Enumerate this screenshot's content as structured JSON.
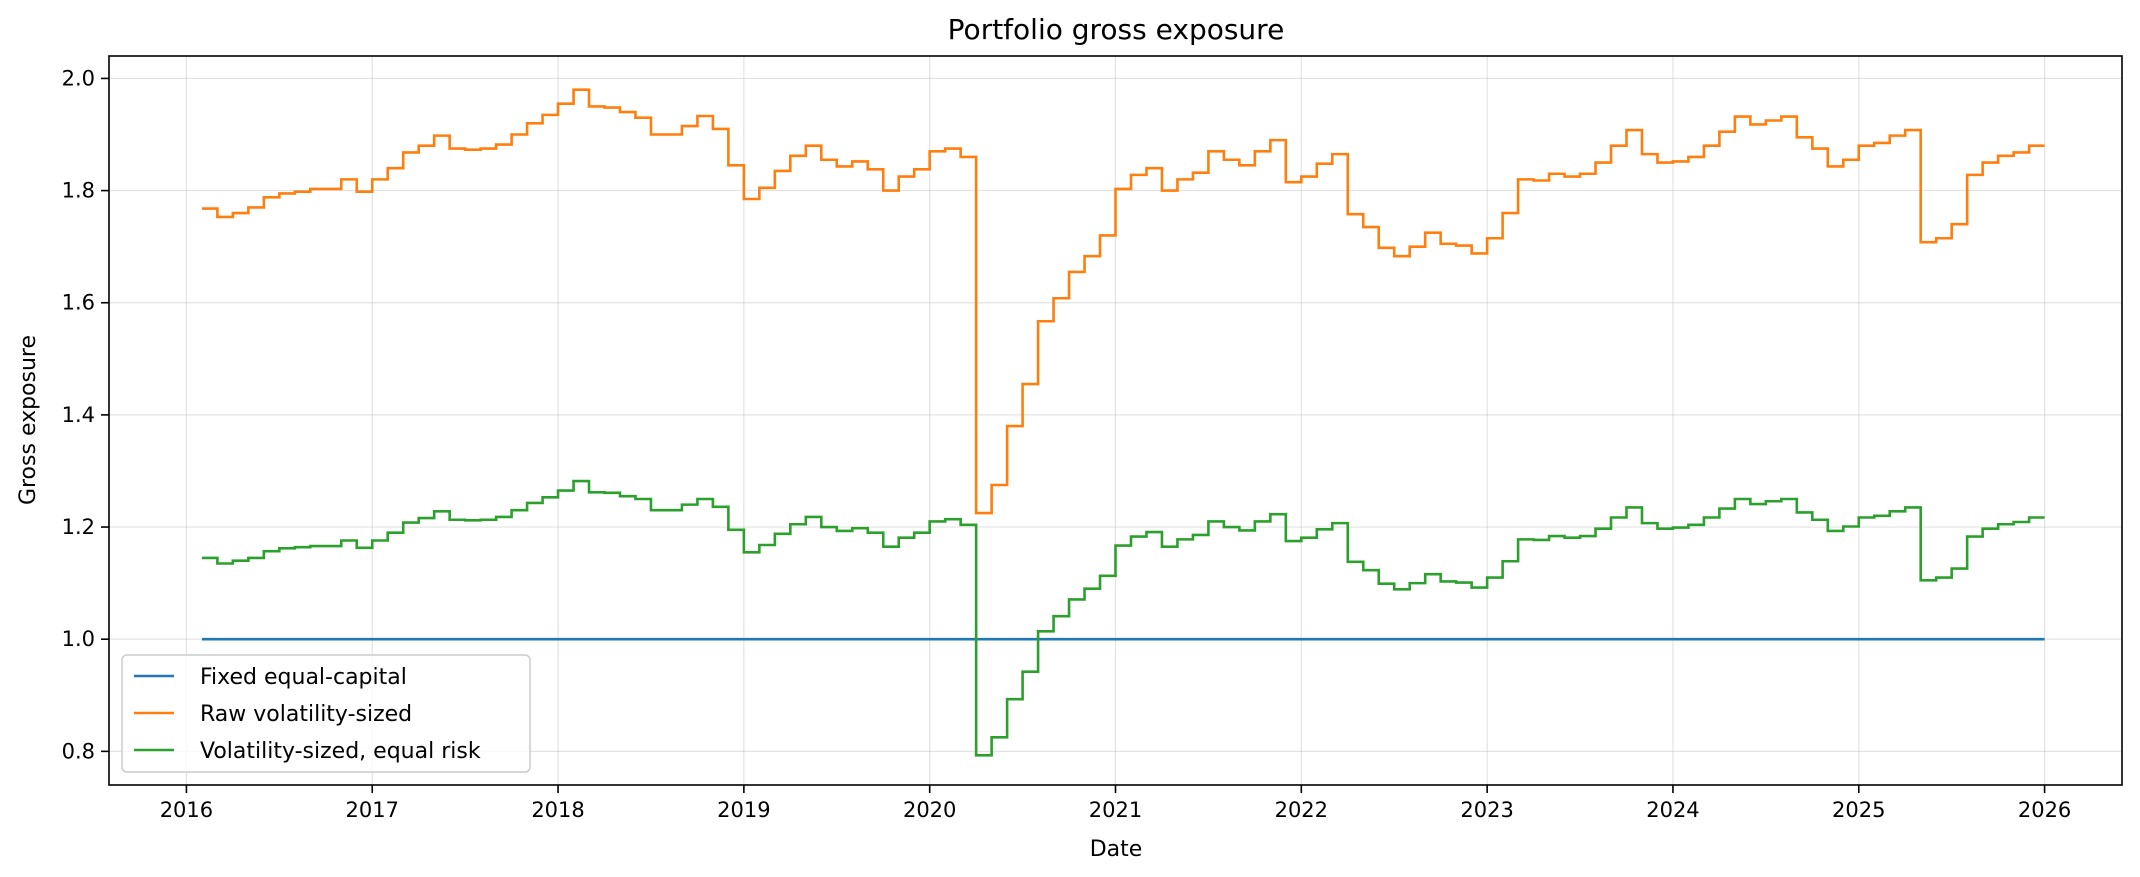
{
  "chart_data": {
    "type": "line",
    "title": "Portfolio gross exposure",
    "xlabel": "Date",
    "ylabel": "Gross exposure",
    "x_axis": "date",
    "xlim": [
      "2015-08-01",
      "2026-06-01"
    ],
    "ylim": [
      0.74,
      2.04
    ],
    "x_ticks": [
      "2016",
      "2017",
      "2018",
      "2019",
      "2020",
      "2021",
      "2022",
      "2023",
      "2024",
      "2025",
      "2026"
    ],
    "y_ticks": [
      "0.8",
      "1.0",
      "1.2",
      "1.4",
      "1.6",
      "1.8",
      "2.0"
    ],
    "grid": true,
    "legend_position": "lower-left",
    "step": "post",
    "x": [
      "2016-02",
      "2016-03",
      "2016-04",
      "2016-05",
      "2016-06",
      "2016-07",
      "2016-08",
      "2016-09",
      "2016-10",
      "2016-11",
      "2016-12",
      "2017-01",
      "2017-02",
      "2017-03",
      "2017-04",
      "2017-05",
      "2017-06",
      "2017-07",
      "2017-08",
      "2017-09",
      "2017-10",
      "2017-11",
      "2017-12",
      "2018-01",
      "2018-02",
      "2018-03",
      "2018-04",
      "2018-05",
      "2018-06",
      "2018-07",
      "2018-08",
      "2018-09",
      "2018-10",
      "2018-11",
      "2018-12",
      "2019-01",
      "2019-02",
      "2019-03",
      "2019-04",
      "2019-05",
      "2019-06",
      "2019-07",
      "2019-08",
      "2019-09",
      "2019-10",
      "2019-11",
      "2019-12",
      "2020-01",
      "2020-02",
      "2020-03",
      "2020-04",
      "2020-05",
      "2020-06",
      "2020-07",
      "2020-08",
      "2020-09",
      "2020-10",
      "2020-11",
      "2020-12",
      "2021-01",
      "2021-02",
      "2021-03",
      "2021-04",
      "2021-05",
      "2021-06",
      "2021-07",
      "2021-08",
      "2021-09",
      "2021-10",
      "2021-11",
      "2021-12",
      "2022-01",
      "2022-02",
      "2022-03",
      "2022-04",
      "2022-05",
      "2022-06",
      "2022-07",
      "2022-08",
      "2022-09",
      "2022-10",
      "2022-11",
      "2022-12",
      "2023-01",
      "2023-02",
      "2023-03",
      "2023-04",
      "2023-05",
      "2023-06",
      "2023-07",
      "2023-08",
      "2023-09",
      "2023-10",
      "2023-11",
      "2023-12",
      "2024-01",
      "2024-02",
      "2024-03",
      "2024-04",
      "2024-05",
      "2024-06",
      "2024-07",
      "2024-08",
      "2024-09",
      "2024-10",
      "2024-11",
      "2024-12",
      "2025-01",
      "2025-02",
      "2025-03",
      "2025-04",
      "2025-05",
      "2025-06",
      "2025-07",
      "2025-08",
      "2025-09",
      "2025-10",
      "2025-11",
      "2025-12",
      "2026-01"
    ],
    "series": [
      {
        "name": "Fixed equal-capital",
        "color": "#1f77b4",
        "values": [
          1.0,
          1.0,
          1.0,
          1.0,
          1.0,
          1.0,
          1.0,
          1.0,
          1.0,
          1.0,
          1.0,
          1.0,
          1.0,
          1.0,
          1.0,
          1.0,
          1.0,
          1.0,
          1.0,
          1.0,
          1.0,
          1.0,
          1.0,
          1.0,
          1.0,
          1.0,
          1.0,
          1.0,
          1.0,
          1.0,
          1.0,
          1.0,
          1.0,
          1.0,
          1.0,
          1.0,
          1.0,
          1.0,
          1.0,
          1.0,
          1.0,
          1.0,
          1.0,
          1.0,
          1.0,
          1.0,
          1.0,
          1.0,
          1.0,
          1.0,
          1.0,
          1.0,
          1.0,
          1.0,
          1.0,
          1.0,
          1.0,
          1.0,
          1.0,
          1.0,
          1.0,
          1.0,
          1.0,
          1.0,
          1.0,
          1.0,
          1.0,
          1.0,
          1.0,
          1.0,
          1.0,
          1.0,
          1.0,
          1.0,
          1.0,
          1.0,
          1.0,
          1.0,
          1.0,
          1.0,
          1.0,
          1.0,
          1.0,
          1.0,
          1.0,
          1.0,
          1.0,
          1.0,
          1.0,
          1.0,
          1.0,
          1.0,
          1.0,
          1.0,
          1.0,
          1.0,
          1.0,
          1.0,
          1.0,
          1.0,
          1.0,
          1.0,
          1.0,
          1.0,
          1.0,
          1.0,
          1.0,
          1.0,
          1.0,
          1.0,
          1.0,
          1.0,
          1.0,
          1.0,
          1.0,
          1.0,
          1.0,
          1.0,
          1.0,
          1.0
        ]
      },
      {
        "name": "Raw volatility-sized",
        "color": "#ff7f0e",
        "values": [
          1.768,
          1.753,
          1.76,
          1.77,
          1.788,
          1.795,
          1.798,
          1.803,
          1.803,
          1.82,
          1.798,
          1.82,
          1.84,
          1.868,
          1.88,
          1.898,
          1.875,
          1.873,
          1.875,
          1.882,
          1.9,
          1.92,
          1.935,
          1.955,
          1.98,
          1.95,
          1.948,
          1.94,
          1.93,
          1.9,
          1.9,
          1.915,
          1.933,
          1.91,
          1.845,
          1.785,
          1.805,
          1.835,
          1.862,
          1.88,
          1.855,
          1.843,
          1.852,
          1.838,
          1.8,
          1.825,
          1.838,
          1.87,
          1.875,
          1.86,
          1.225,
          1.275,
          1.38,
          1.455,
          1.567,
          1.608,
          1.655,
          1.683,
          1.72,
          1.803,
          1.828,
          1.84,
          1.8,
          1.82,
          1.832,
          1.87,
          1.855,
          1.845,
          1.87,
          1.89,
          1.815,
          1.825,
          1.848,
          1.865,
          1.758,
          1.735,
          1.698,
          1.683,
          1.7,
          1.725,
          1.705,
          1.702,
          1.688,
          1.715,
          1.76,
          1.82,
          1.818,
          1.83,
          1.825,
          1.83,
          1.85,
          1.88,
          1.908,
          1.865,
          1.85,
          1.852,
          1.86,
          1.88,
          1.905,
          1.932,
          1.918,
          1.925,
          1.932,
          1.895,
          1.875,
          1.843,
          1.855,
          1.88,
          1.885,
          1.898,
          1.908,
          1.708,
          1.715,
          1.74,
          1.828,
          1.85,
          1.862,
          1.868,
          1.88,
          1.88
        ]
      },
      {
        "name": "Volatility-sized, equal risk",
        "color": "#2ca02c",
        "values": [
          1.145,
          1.135,
          1.14,
          1.145,
          1.157,
          1.162,
          1.164,
          1.166,
          1.166,
          1.176,
          1.163,
          1.176,
          1.19,
          1.208,
          1.216,
          1.228,
          1.213,
          1.212,
          1.213,
          1.218,
          1.23,
          1.243,
          1.253,
          1.265,
          1.282,
          1.262,
          1.261,
          1.255,
          1.25,
          1.23,
          1.23,
          1.24,
          1.25,
          1.236,
          1.195,
          1.155,
          1.168,
          1.188,
          1.205,
          1.218,
          1.2,
          1.193,
          1.198,
          1.19,
          1.165,
          1.181,
          1.19,
          1.21,
          1.214,
          1.204,
          0.793,
          0.825,
          0.893,
          0.942,
          1.014,
          1.041,
          1.071,
          1.09,
          1.113,
          1.167,
          1.183,
          1.191,
          1.165,
          1.178,
          1.186,
          1.21,
          1.2,
          1.194,
          1.21,
          1.223,
          1.175,
          1.181,
          1.196,
          1.207,
          1.138,
          1.123,
          1.099,
          1.089,
          1.1,
          1.116,
          1.103,
          1.101,
          1.092,
          1.11,
          1.139,
          1.178,
          1.177,
          1.184,
          1.181,
          1.184,
          1.197,
          1.217,
          1.235,
          1.207,
          1.197,
          1.199,
          1.204,
          1.217,
          1.233,
          1.25,
          1.241,
          1.246,
          1.25,
          1.226,
          1.213,
          1.193,
          1.201,
          1.217,
          1.22,
          1.228,
          1.235,
          1.105,
          1.11,
          1.126,
          1.183,
          1.197,
          1.205,
          1.209,
          1.217,
          1.217
        ]
      }
    ]
  }
}
